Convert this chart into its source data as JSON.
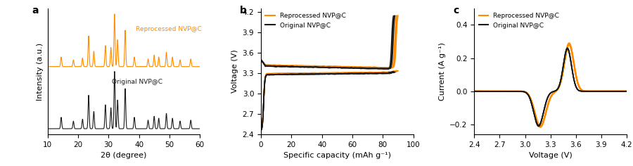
{
  "orange_color": "#FF8C00",
  "black_color": "#1a1a1a",
  "panel_a": {
    "label": "a",
    "xlabel": "2θ (degree)",
    "ylabel": "Intensity (a.u.)",
    "xlim": [
      10,
      60
    ],
    "xticks": [
      10,
      20,
      30,
      40,
      50,
      60
    ],
    "legend_orange": "Reprocessed NVP@C",
    "legend_black": "Original NVP@C",
    "peaks": [
      14.5,
      18.5,
      21.5,
      23.5,
      25.2,
      29.0,
      30.8,
      32.0,
      33.0,
      35.5,
      38.5,
      43.0,
      45.0,
      46.5,
      49.0,
      51.0,
      53.5,
      57.0
    ],
    "heights_orange": [
      0.1,
      0.07,
      0.09,
      0.32,
      0.16,
      0.22,
      0.2,
      0.55,
      0.28,
      0.38,
      0.1,
      0.08,
      0.12,
      0.1,
      0.15,
      0.1,
      0.07,
      0.08
    ],
    "heights_black": [
      0.12,
      0.08,
      0.1,
      0.35,
      0.18,
      0.25,
      0.22,
      0.6,
      0.3,
      0.42,
      0.12,
      0.09,
      0.13,
      0.11,
      0.16,
      0.11,
      0.08,
      0.09
    ]
  },
  "panel_b": {
    "label": "b",
    "xlabel": "Specific capacity (mAh g⁻¹)",
    "ylabel": "Voltage (V)",
    "xlim": [
      0,
      100
    ],
    "ylim": [
      2.4,
      4.25
    ],
    "xticks": [
      0,
      20,
      40,
      60,
      80,
      100
    ],
    "yticks": [
      2.4,
      2.7,
      3.0,
      3.3,
      3.6,
      3.9,
      4.2
    ],
    "legend_orange": "Reprocessed NVP@C",
    "legend_black": "Original NVP@C"
  },
  "panel_c": {
    "label": "c",
    "xlabel": "Voltage (V)",
    "ylabel": "Current (A g⁻¹)",
    "xlim": [
      2.4,
      4.2
    ],
    "ylim": [
      -0.26,
      0.5
    ],
    "xticks": [
      2.4,
      2.7,
      3.0,
      3.3,
      3.6,
      3.9,
      4.2
    ],
    "yticks": [
      -0.2,
      0.0,
      0.2,
      0.4
    ],
    "legend_orange": "Reprocessed NVP@C",
    "legend_black": "Original NVP@C"
  }
}
